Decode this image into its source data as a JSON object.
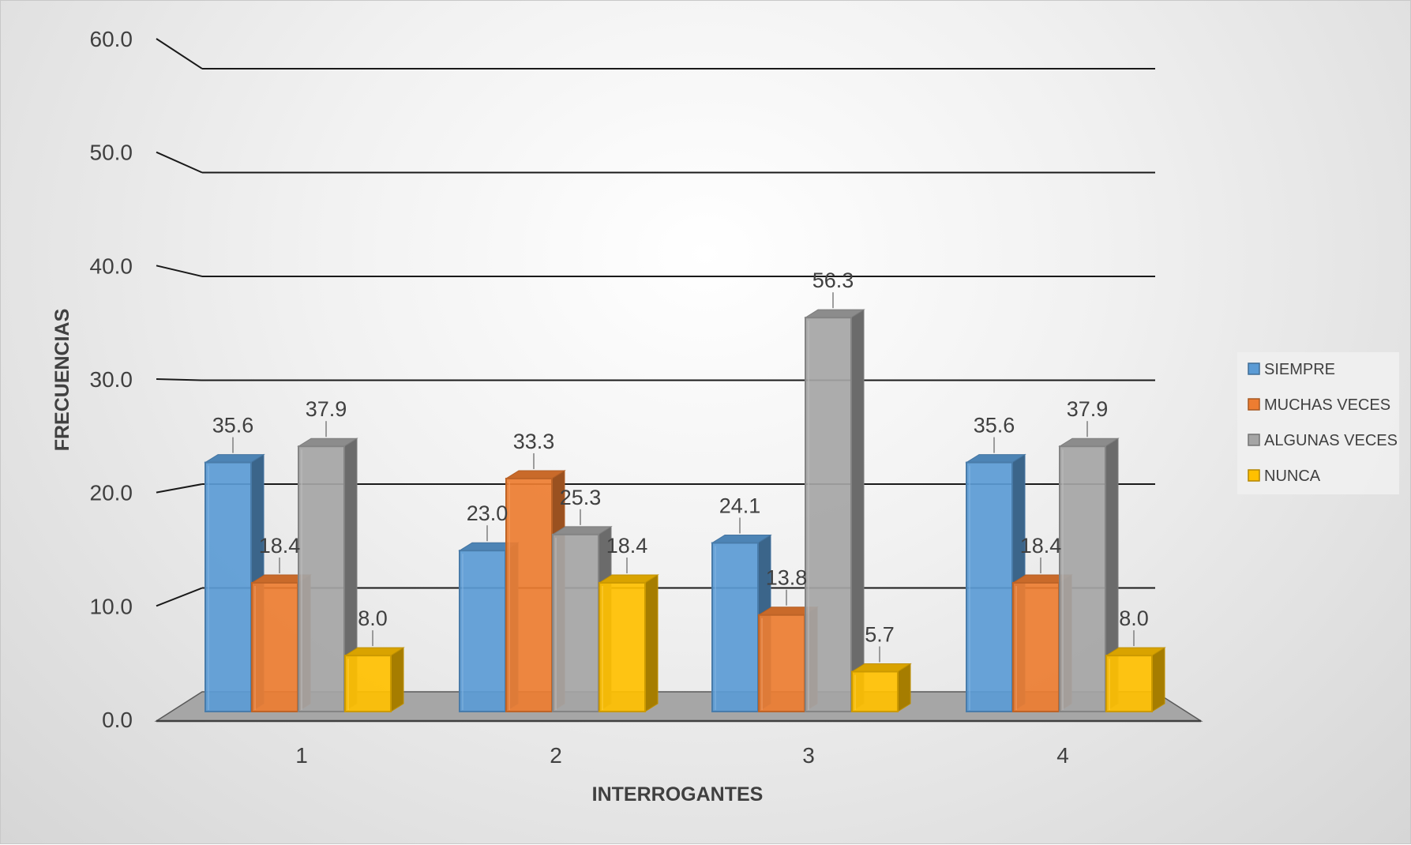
{
  "chart_data": {
    "type": "bar",
    "title": "",
    "xlabel": "INTERROGANTES",
    "ylabel": "FRECUENCIAS",
    "categories": [
      "1",
      "2",
      "3",
      "4"
    ],
    "series": [
      {
        "name": "SIEMPRE",
        "values": [
          35.6,
          23.0,
          24.1,
          35.6
        ],
        "labels": [
          "35.6",
          "23.0",
          "24.1",
          "35.6"
        ],
        "color": "#5B9BD5"
      },
      {
        "name": "MUCHAS VECES",
        "values": [
          18.4,
          33.3,
          13.8,
          18.4
        ],
        "labels": [
          "18.4",
          "33.3",
          "13.8",
          "18.4"
        ],
        "color": "#ED7D31"
      },
      {
        "name": "ALGUNAS VECES",
        "values": [
          37.9,
          25.3,
          56.3,
          37.9
        ],
        "labels": [
          "37.9",
          "25.3",
          "56.3",
          "37.9"
        ],
        "color": "#A5A5A5"
      },
      {
        "name": "NUNCA",
        "values": [
          8.0,
          18.4,
          5.7,
          8.0
        ],
        "labels": [
          "8.0",
          "18.4",
          "5.7",
          "8.0"
        ],
        "color": "#FFC000"
      }
    ],
    "yticks": [
      "0.0",
      "10.0",
      "20.0",
      "30.0",
      "40.0",
      "50.0",
      "60.0"
    ],
    "ylim": [
      0,
      60
    ],
    "grid": true,
    "legend_position": "right",
    "style": "3d-clustered-column"
  }
}
